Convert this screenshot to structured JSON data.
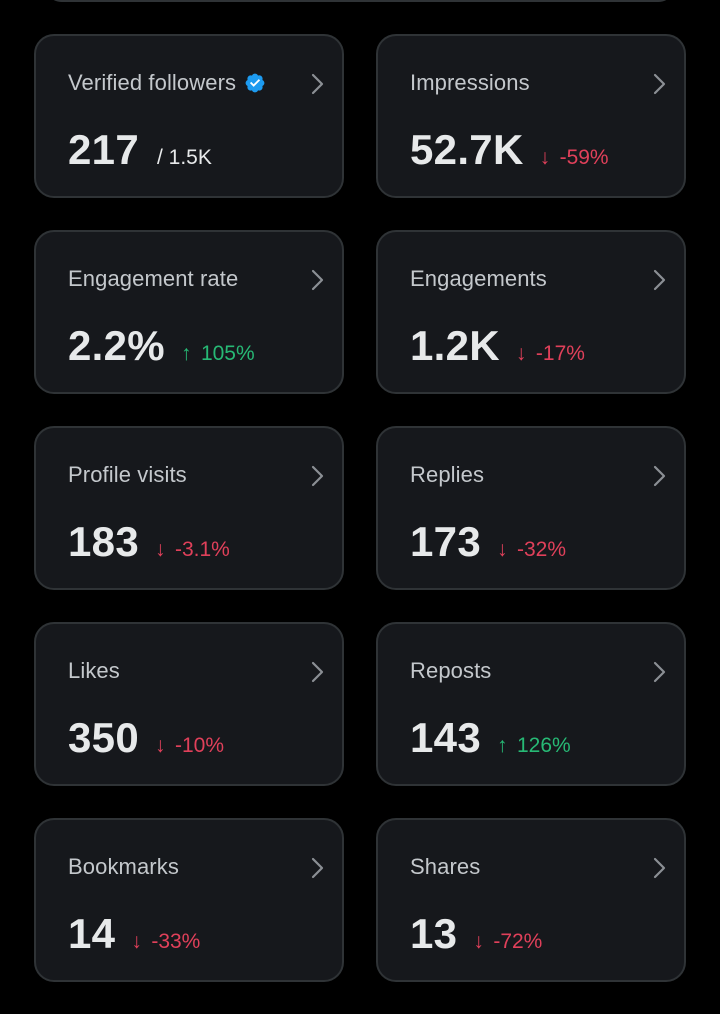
{
  "colors": {
    "background": "#000000",
    "card_bg": "#16181c",
    "card_border": "#2f3336",
    "positive": "#27b975",
    "negative": "#e0405a",
    "verified": "#1d9bf0"
  },
  "cards": [
    {
      "title": "Verified followers",
      "value": "217",
      "sub": "/ 1.5K",
      "verified": true
    },
    {
      "title": "Impressions",
      "value": "52.7K",
      "delta": "-59%",
      "direction": "down"
    },
    {
      "title": "Engagement rate",
      "value": "2.2%",
      "delta": "105%",
      "direction": "up"
    },
    {
      "title": "Engagements",
      "value": "1.2K",
      "delta": "-17%",
      "direction": "down"
    },
    {
      "title": "Profile visits",
      "value": "183",
      "delta": "-3.1%",
      "direction": "down"
    },
    {
      "title": "Replies",
      "value": "173",
      "delta": "-32%",
      "direction": "down"
    },
    {
      "title": "Likes",
      "value": "350",
      "delta": "-10%",
      "direction": "down"
    },
    {
      "title": "Reposts",
      "value": "143",
      "delta": "126%",
      "direction": "up"
    },
    {
      "title": "Bookmarks",
      "value": "14",
      "delta": "-33%",
      "direction": "down"
    },
    {
      "title": "Shares",
      "value": "13",
      "delta": "-72%",
      "direction": "down"
    }
  ],
  "icons": {
    "chevron": "chevron-right-icon",
    "verified": "verified-badge-icon",
    "arrow_down": "arrow-down-icon",
    "arrow_up": "arrow-up-icon"
  }
}
